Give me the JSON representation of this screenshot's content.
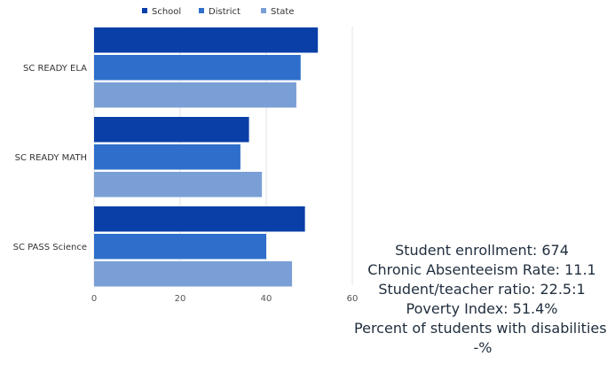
{
  "chart_data": {
    "type": "bar",
    "orientation": "horizontal",
    "categories": [
      "SC READY ELA",
      "SC READY MATH",
      "SC PASS Science"
    ],
    "series": [
      {
        "name": "School",
        "values": [
          52,
          36,
          49
        ]
      },
      {
        "name": "District",
        "values": [
          48,
          34,
          40
        ]
      },
      {
        "name": "State",
        "values": [
          47,
          39,
          46
        ]
      }
    ],
    "xlim": [
      0,
      60
    ],
    "xticks": [
      0,
      20,
      40,
      60
    ],
    "grid": true,
    "legend_position": "top",
    "colors": [
      "#0a3fa8",
      "#2f6fcb",
      "#7a9fd6"
    ]
  },
  "stats": {
    "enrollment": "Student enrollment: 674",
    "absenteeism": "Chronic Absenteeism Rate: 11.1",
    "ratio": "Student/teacher ratio: 22.5:1",
    "poverty": "Poverty Index: 51.4%",
    "disabilities": "Percent of students with disabilities: -%"
  }
}
